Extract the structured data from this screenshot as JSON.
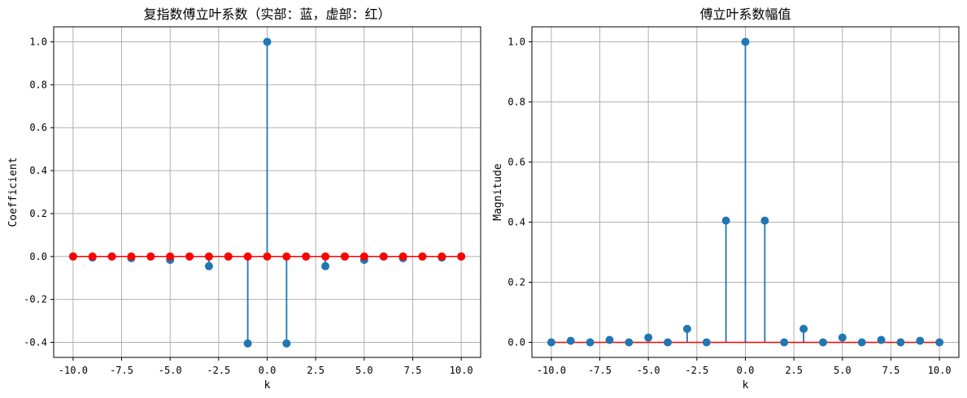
{
  "chart_data": [
    {
      "type": "stem",
      "title": "复指数傅立叶系数（实部：蓝，虚部：红）",
      "xlabel": "k",
      "ylabel": "Coefficient",
      "xlim": [
        -11,
        11
      ],
      "ylim": [
        -0.47,
        1.07
      ],
      "xticks": [
        -10.0,
        -7.5,
        -5.0,
        -2.5,
        0.0,
        2.5,
        5.0,
        7.5,
        10.0
      ],
      "xtick_labels": [
        "-10.0",
        "-7.5",
        "-5.0",
        "-2.5",
        "0.0",
        "2.5",
        "5.0",
        "7.5",
        "10.0"
      ],
      "yticks": [
        -0.4,
        -0.2,
        0.0,
        0.2,
        0.4,
        0.6,
        0.8,
        1.0
      ],
      "ytick_labels": [
        "-0.4",
        "-0.2",
        "0.0",
        "0.2",
        "0.4",
        "0.6",
        "0.8",
        "1.0"
      ],
      "grid": true,
      "x": [
        -10,
        -9,
        -8,
        -7,
        -6,
        -5,
        -4,
        -3,
        -2,
        -1,
        0,
        1,
        2,
        3,
        4,
        5,
        6,
        7,
        8,
        9,
        10
      ],
      "series": [
        {
          "color": "#1f77b4",
          "values": [
            0,
            -0.005,
            0,
            -0.008,
            0,
            -0.016,
            0,
            -0.045,
            0,
            -0.405,
            1.0,
            -0.405,
            0,
            -0.045,
            0,
            -0.016,
            0,
            -0.008,
            0,
            -0.005,
            0
          ]
        },
        {
          "color": "#ff0000",
          "values": [
            0,
            0,
            0,
            0,
            0,
            0,
            0,
            0,
            0,
            0,
            0,
            0,
            0,
            0,
            0,
            0,
            0,
            0,
            0,
            0,
            0
          ]
        }
      ]
    },
    {
      "type": "stem",
      "title": "傅立叶系数幅值",
      "xlabel": "k",
      "ylabel": "Magnitude",
      "xlim": [
        -11,
        11
      ],
      "ylim": [
        -0.05,
        1.05
      ],
      "xticks": [
        -10.0,
        -7.5,
        -5.0,
        -2.5,
        0.0,
        2.5,
        5.0,
        7.5,
        10.0
      ],
      "xtick_labels": [
        "-10.0",
        "-7.5",
        "-5.0",
        "-2.5",
        "0.0",
        "2.5",
        "5.0",
        "7.5",
        "10.0"
      ],
      "yticks": [
        0.0,
        0.2,
        0.4,
        0.6,
        0.8,
        1.0
      ],
      "ytick_labels": [
        "0.0",
        "0.2",
        "0.4",
        "0.6",
        "0.8",
        "1.0"
      ],
      "grid": true,
      "x": [
        -10,
        -9,
        -8,
        -7,
        -6,
        -5,
        -4,
        -3,
        -2,
        -1,
        0,
        1,
        2,
        3,
        4,
        5,
        6,
        7,
        8,
        9,
        10
      ],
      "series": [
        {
          "color": "#1f77b4",
          "values": [
            0,
            0.005,
            0,
            0.008,
            0,
            0.016,
            0,
            0.045,
            0,
            0.405,
            1.0,
            0.405,
            0,
            0.045,
            0,
            0.016,
            0,
            0.008,
            0,
            0.005,
            0
          ]
        }
      ]
    }
  ]
}
